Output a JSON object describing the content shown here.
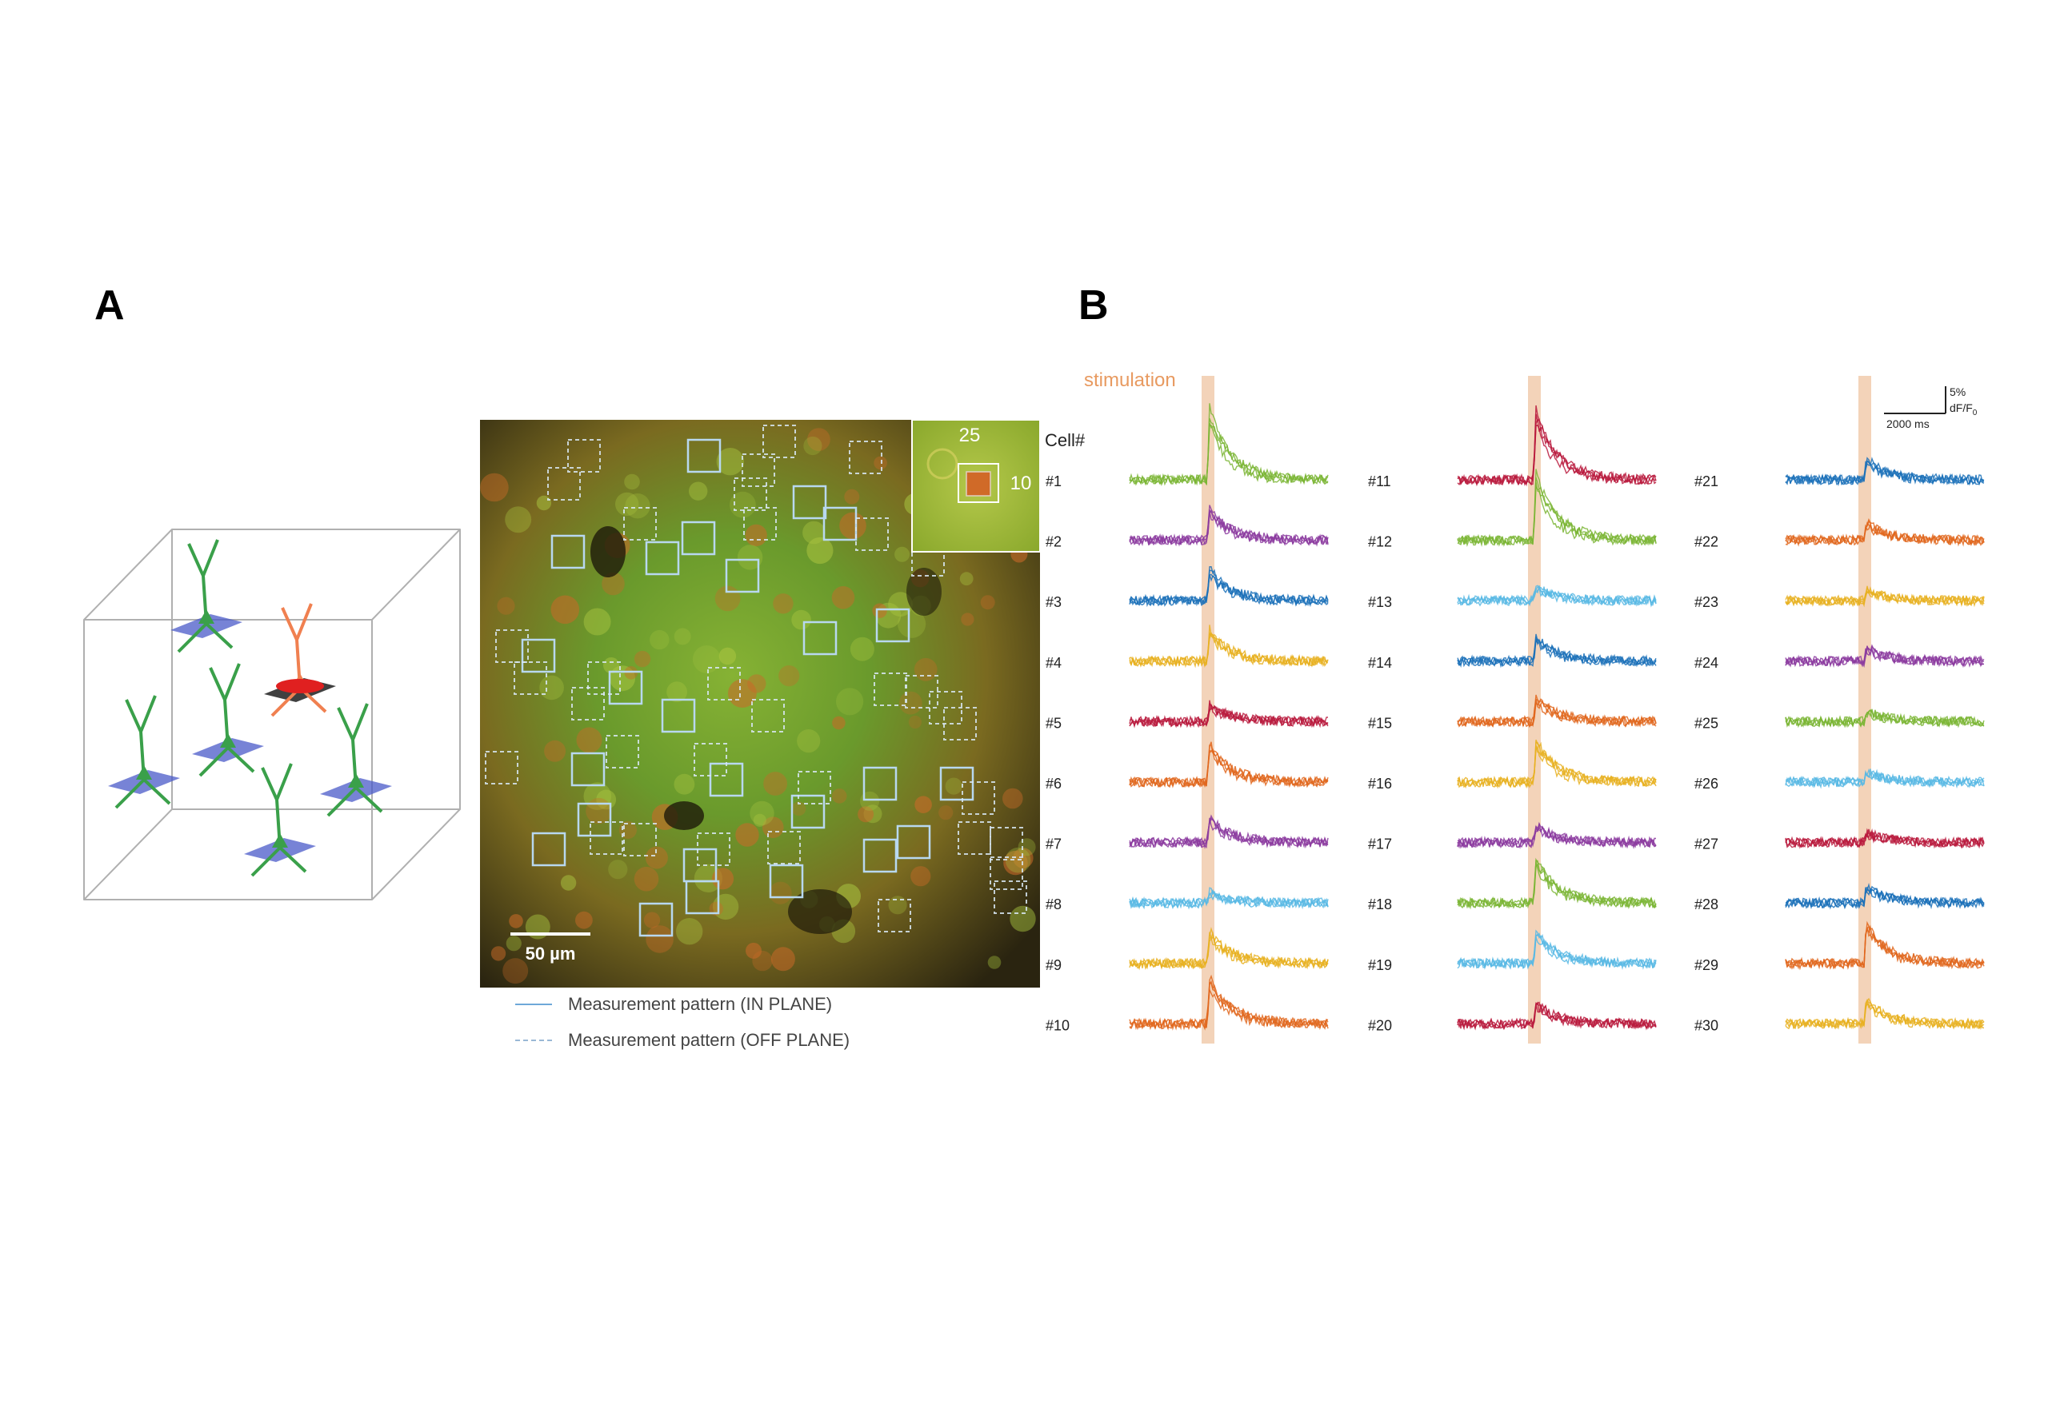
{
  "panel_labels": {
    "a": "A",
    "b": "B"
  },
  "micrograph": {
    "inset_numbers": [
      "25",
      "10"
    ],
    "scale_bar_label": "50 µm"
  },
  "legend": {
    "in_plane": "Measurement pattern (IN PLANE)",
    "off_plane": "Measurement pattern (OFF PLANE)"
  },
  "traces": {
    "stimulation_label": "stimulation",
    "cell_header": "Cell#",
    "scale_y_label": "5%",
    "scale_y_unit": "dF/F",
    "scale_y_unit_sub": "0",
    "scale_x_label": "2000 ms",
    "colors": {
      "green": "#7ab534",
      "purple": "#8b3a9f",
      "blue": "#1a70b8",
      "yellow": "#e8b020",
      "crimson": "#b8193c",
      "orange": "#e0661c",
      "lightblue": "#58b8e4",
      "stim_band": "#f0c8a8"
    },
    "cells": [
      {
        "label": "#1",
        "color": "green",
        "amp": 1.0
      },
      {
        "label": "#2",
        "color": "purple",
        "amp": 0.45
      },
      {
        "label": "#3",
        "color": "blue",
        "amp": 0.45
      },
      {
        "label": "#4",
        "color": "yellow",
        "amp": 0.45
      },
      {
        "label": "#5",
        "color": "crimson",
        "amp": 0.25
      },
      {
        "label": "#6",
        "color": "orange",
        "amp": 0.55
      },
      {
        "label": "#7",
        "color": "purple",
        "amp": 0.35
      },
      {
        "label": "#8",
        "color": "lightblue",
        "amp": 0.15
      },
      {
        "label": "#9",
        "color": "yellow",
        "amp": 0.45
      },
      {
        "label": "#10",
        "color": "orange",
        "amp": 0.65
      },
      {
        "label": "#11",
        "color": "crimson",
        "amp": 1.0
      },
      {
        "label": "#12",
        "color": "green",
        "amp": 0.95
      },
      {
        "label": "#13",
        "color": "lightblue",
        "amp": 0.2
      },
      {
        "label": "#14",
        "color": "blue",
        "amp": 0.35
      },
      {
        "label": "#15",
        "color": "orange",
        "amp": 0.35
      },
      {
        "label": "#16",
        "color": "yellow",
        "amp": 0.6
      },
      {
        "label": "#17",
        "color": "purple",
        "amp": 0.25
      },
      {
        "label": "#18",
        "color": "green",
        "amp": 0.65
      },
      {
        "label": "#19",
        "color": "lightblue",
        "amp": 0.45
      },
      {
        "label": "#20",
        "color": "crimson",
        "amp": 0.3
      },
      {
        "label": "#21",
        "color": "blue",
        "amp": 0.3
      },
      {
        "label": "#22",
        "color": "orange",
        "amp": 0.25
      },
      {
        "label": "#23",
        "color": "yellow",
        "amp": 0.15
      },
      {
        "label": "#24",
        "color": "purple",
        "amp": 0.2
      },
      {
        "label": "#25",
        "color": "green",
        "amp": 0.15
      },
      {
        "label": "#26",
        "color": "lightblue",
        "amp": 0.15
      },
      {
        "label": "#27",
        "color": "crimson",
        "amp": 0.15
      },
      {
        "label": "#28",
        "color": "blue",
        "amp": 0.25
      },
      {
        "label": "#29",
        "color": "orange",
        "amp": 0.6
      },
      {
        "label": "#30",
        "color": "yellow",
        "amp": 0.35
      }
    ]
  }
}
